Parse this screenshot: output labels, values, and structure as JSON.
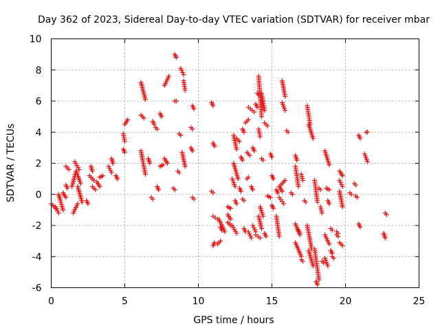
{
  "chart_data": {
    "type": "scatter",
    "title": "Day 362 of 2023, Sidereal Day-to-day VTEC variation (SDTVAR) for receiver mbar",
    "xlabel": "GPS time / hours",
    "ylabel": "SDTVAR / TECUs",
    "xlim": [
      0,
      25
    ],
    "ylim": [
      -6,
      10
    ],
    "x_ticks": [
      0,
      5,
      10,
      15,
      20,
      25
    ],
    "y_ticks": [
      -6,
      -4,
      -2,
      0,
      2,
      4,
      6,
      8,
      10
    ],
    "x_tick_labels": [
      "0",
      "5",
      "10",
      "15",
      "20",
      "25"
    ],
    "y_tick_labels": [
      "-6",
      "-4",
      "-2",
      "0",
      "2",
      "4",
      "6",
      "8",
      "10"
    ],
    "grid": true,
    "marker": "+",
    "marker_color": "#e81010",
    "series": [
      {
        "name": "SDTVAR",
        "segments": [
          [
            0.0,
            0.3,
            -0.6,
            -0.9
          ],
          [
            0.3,
            0.5,
            -0.8,
            -1.2
          ],
          [
            0.5,
            0.6,
            0.0,
            -0.3
          ],
          [
            0.6,
            0.8,
            -0.3,
            -1.0
          ],
          [
            0.8,
            1.0,
            0.1,
            -0.2
          ],
          [
            1.0,
            1.1,
            0.6,
            0.4
          ],
          [
            1.0,
            1.2,
            1.8,
            1.6
          ],
          [
            1.4,
            1.7,
            0.5,
            1.5
          ],
          [
            1.5,
            1.8,
            -1.2,
            -0.6
          ],
          [
            1.6,
            1.9,
            2.1,
            1.6
          ],
          [
            1.7,
            2.0,
            1.5,
            0.7
          ],
          [
            1.8,
            2.1,
            0.5,
            -0.5
          ],
          [
            2.4,
            2.5,
            -0.4,
            -0.6
          ],
          [
            2.6,
            2.9,
            1.2,
            0.9
          ],
          [
            2.7,
            2.8,
            1.8,
            1.5
          ],
          [
            2.8,
            3.0,
            0.5,
            0.3
          ],
          [
            3.1,
            3.3,
            0.8,
            0.5
          ],
          [
            3.3,
            3.5,
            1.1,
            1.2
          ],
          [
            3.9,
            4.1,
            1.8,
            1.4
          ],
          [
            4.1,
            4.2,
            2.3,
            2.0
          ],
          [
            4.4,
            4.5,
            1.2,
            1.0
          ],
          [
            4.9,
            5.0,
            3.9,
            3.4
          ],
          [
            4.9,
            5.0,
            2.9,
            2.7
          ],
          [
            5.0,
            5.2,
            4.5,
            4.8
          ],
          [
            6.1,
            6.4,
            7.2,
            6.1
          ],
          [
            6.1,
            6.3,
            5.1,
            4.9
          ],
          [
            6.1,
            6.4,
            2.8,
            1.3
          ],
          [
            6.6,
            6.7,
            2.3,
            2.0
          ],
          [
            6.8,
            6.9,
            -0.2,
            -0.3
          ],
          [
            6.9,
            7.0,
            4.7,
            4.5
          ],
          [
            7.1,
            7.2,
            4.3,
            4.2
          ],
          [
            7.2,
            7.3,
            0.5,
            0.3
          ],
          [
            7.4,
            7.5,
            5.2,
            5.0
          ],
          [
            7.4,
            7.6,
            1.8,
            1.9
          ],
          [
            7.7,
            8.0,
            7.0,
            7.6
          ],
          [
            7.7,
            7.9,
            2.3,
            2.0
          ],
          [
            8.3,
            8.4,
            0.4,
            0.3
          ],
          [
            8.4,
            8.5,
            6.0,
            6.0
          ],
          [
            8.4,
            8.5,
            9.0,
            8.8
          ],
          [
            8.6,
            8.7,
            1.5,
            1.4
          ],
          [
            8.7,
            8.8,
            3.9,
            3.8
          ],
          [
            8.8,
            9.0,
            8.1,
            7.7
          ],
          [
            8.9,
            9.1,
            2.7,
            1.8
          ],
          [
            9.0,
            9.1,
            7.3,
            6.7
          ],
          [
            9.5,
            9.6,
            4.3,
            4.2
          ],
          [
            9.5,
            9.6,
            3.0,
            2.8
          ],
          [
            9.6,
            9.7,
            5.7,
            5.5
          ],
          [
            9.6,
            9.7,
            -0.2,
            -0.3
          ],
          [
            10.9,
            11.0,
            5.9,
            5.7
          ],
          [
            10.9,
            11.0,
            0.2,
            0.1
          ],
          [
            11.0,
            11.1,
            3.3,
            3.1
          ],
          [
            11.0,
            11.1,
            -3.3,
            -3.1
          ],
          [
            11.0,
            11.3,
            -1.4,
            -1.6
          ],
          [
            11.3,
            11.5,
            -3.2,
            -3.0
          ],
          [
            11.4,
            11.8,
            -1.6,
            -2.4
          ],
          [
            11.5,
            11.6,
            -2.1,
            -2.3
          ],
          [
            12.0,
            12.2,
            -0.8,
            -0.9
          ],
          [
            12.0,
            12.2,
            -1.3,
            -1.6
          ],
          [
            12.0,
            12.2,
            -1.8,
            -2.0
          ],
          [
            12.3,
            12.5,
            1.0,
            0.5
          ],
          [
            12.3,
            12.6,
            -2.0,
            -2.5
          ],
          [
            12.4,
            12.6,
            3.8,
            2.9
          ],
          [
            12.4,
            12.7,
            2.0,
            1.0
          ],
          [
            12.5,
            12.6,
            -0.4,
            -0.6
          ],
          [
            12.6,
            12.8,
            3.6,
            3.4
          ],
          [
            12.8,
            12.9,
            0.4,
            0.2
          ],
          [
            12.9,
            13.0,
            2.4,
            2.2
          ],
          [
            13.0,
            13.1,
            -0.3,
            -0.4
          ],
          [
            13.0,
            13.1,
            4.2,
            4.0
          ],
          [
            13.1,
            13.2,
            -2.2,
            -2.4
          ],
          [
            13.2,
            13.4,
            4.6,
            4.8
          ],
          [
            13.3,
            13.4,
            1.0,
            1.1
          ],
          [
            13.3,
            13.5,
            2.7,
            2.5
          ],
          [
            13.4,
            13.6,
            -2.4,
            -2.8
          ],
          [
            13.4,
            13.8,
            5.6,
            5.3
          ],
          [
            13.6,
            13.7,
            0.5,
            0.3
          ],
          [
            13.7,
            13.8,
            3.0,
            2.8
          ],
          [
            13.7,
            13.9,
            -2.0,
            -2.4
          ],
          [
            13.9,
            14.0,
            5.8,
            5.6
          ],
          [
            13.9,
            14.2,
            -2.6,
            -2.8
          ],
          [
            14.0,
            14.1,
            6.5,
            6.4
          ],
          [
            14.1,
            14.3,
            7.6,
            5.0
          ],
          [
            14.1,
            14.2,
            4.2,
            3.7
          ],
          [
            14.1,
            14.3,
            -1.4,
            -2.2
          ],
          [
            14.2,
            14.4,
            -0.8,
            -1.4
          ],
          [
            14.3,
            14.5,
            6.5,
            5.4
          ],
          [
            14.3,
            14.4,
            2.3,
            2.2
          ],
          [
            14.5,
            14.7,
            4.6,
            4.4
          ],
          [
            14.5,
            14.6,
            -2.5,
            -2.7
          ],
          [
            14.7,
            14.9,
            -0.1,
            -0.2
          ],
          [
            14.9,
            15.0,
            2.6,
            2.4
          ],
          [
            15.0,
            15.1,
            1.2,
            1.0
          ],
          [
            15.0,
            15.1,
            -0.7,
            -0.9
          ],
          [
            15.3,
            15.4,
            0.3,
            0.1
          ],
          [
            15.3,
            15.5,
            -1.4,
            -2.7
          ],
          [
            15.5,
            15.8,
            -0.2,
            -0.6
          ],
          [
            15.5,
            15.7,
            0.5,
            0.2
          ],
          [
            15.6,
            15.9,
            0.6,
            0.9
          ],
          [
            15.7,
            15.9,
            7.3,
            6.3
          ],
          [
            15.7,
            15.9,
            5.9,
            5.4
          ],
          [
            16.0,
            16.1,
            4.1,
            4.0
          ],
          [
            16.3,
            16.4,
            0.1,
            0.0
          ],
          [
            16.6,
            16.7,
            2.5,
            2.2
          ],
          [
            16.6,
            16.8,
            1.8,
            0.5
          ],
          [
            16.6,
            16.9,
            -1.9,
            -2.6
          ],
          [
            16.6,
            17.0,
            -3.1,
            -4.0
          ],
          [
            16.8,
            16.9,
            -2.3,
            -2.5
          ],
          [
            17.0,
            17.1,
            1.3,
            0.9
          ],
          [
            17.0,
            17.1,
            -4.2,
            -4.3
          ],
          [
            17.2,
            17.3,
            -0.4,
            -0.5
          ],
          [
            17.4,
            17.6,
            5.7,
            4.5
          ],
          [
            17.4,
            17.7,
            -2.0,
            -3.5
          ],
          [
            17.5,
            17.8,
            4.5,
            3.6
          ],
          [
            17.5,
            17.8,
            -3.6,
            -4.6
          ],
          [
            17.9,
            18.1,
            0.9,
            -0.5
          ],
          [
            17.9,
            18.2,
            -3.5,
            -5.5
          ],
          [
            18.0,
            18.1,
            -5.6,
            -5.8
          ],
          [
            18.2,
            18.3,
            0.4,
            0.3
          ],
          [
            18.3,
            18.4,
            -0.8,
            -1.2
          ],
          [
            18.4,
            18.5,
            -4.3,
            -4.4
          ],
          [
            18.6,
            18.9,
            2.8,
            1.9
          ],
          [
            18.6,
            18.9,
            -2.6,
            -3.2
          ],
          [
            18.6,
            18.8,
            -4.1,
            -4.6
          ],
          [
            18.7,
            18.9,
            0.4,
            0.3
          ],
          [
            18.8,
            18.9,
            -0.4,
            -0.6
          ],
          [
            19.0,
            19.1,
            -3.6,
            -3.8
          ],
          [
            19.0,
            19.1,
            -2.2,
            -2.3
          ],
          [
            19.1,
            19.2,
            -4.0,
            -4.1
          ],
          [
            19.4,
            19.5,
            -2.4,
            -2.5
          ],
          [
            19.4,
            19.5,
            -2.6,
            -2.7
          ],
          [
            19.6,
            19.8,
            1.5,
            1.2
          ],
          [
            19.6,
            19.8,
            0.9,
            0.5
          ],
          [
            19.6,
            19.8,
            0.2,
            -0.8
          ],
          [
            19.6,
            19.8,
            -3.1,
            -3.3
          ],
          [
            20.3,
            20.4,
            0.1,
            0.0
          ],
          [
            20.6,
            20.7,
            0.7,
            0.6
          ],
          [
            20.7,
            20.8,
            -0.1,
            -0.2
          ],
          [
            20.9,
            21.0,
            3.8,
            3.6
          ],
          [
            20.9,
            21.0,
            -1.9,
            -2.1
          ],
          [
            21.4,
            21.5,
            4.0,
            4.0
          ],
          [
            21.3,
            21.5,
            2.6,
            2.1
          ],
          [
            22.7,
            22.8,
            -1.2,
            -1.3
          ],
          [
            22.6,
            22.7,
            -2.5,
            -2.8
          ]
        ]
      }
    ]
  }
}
